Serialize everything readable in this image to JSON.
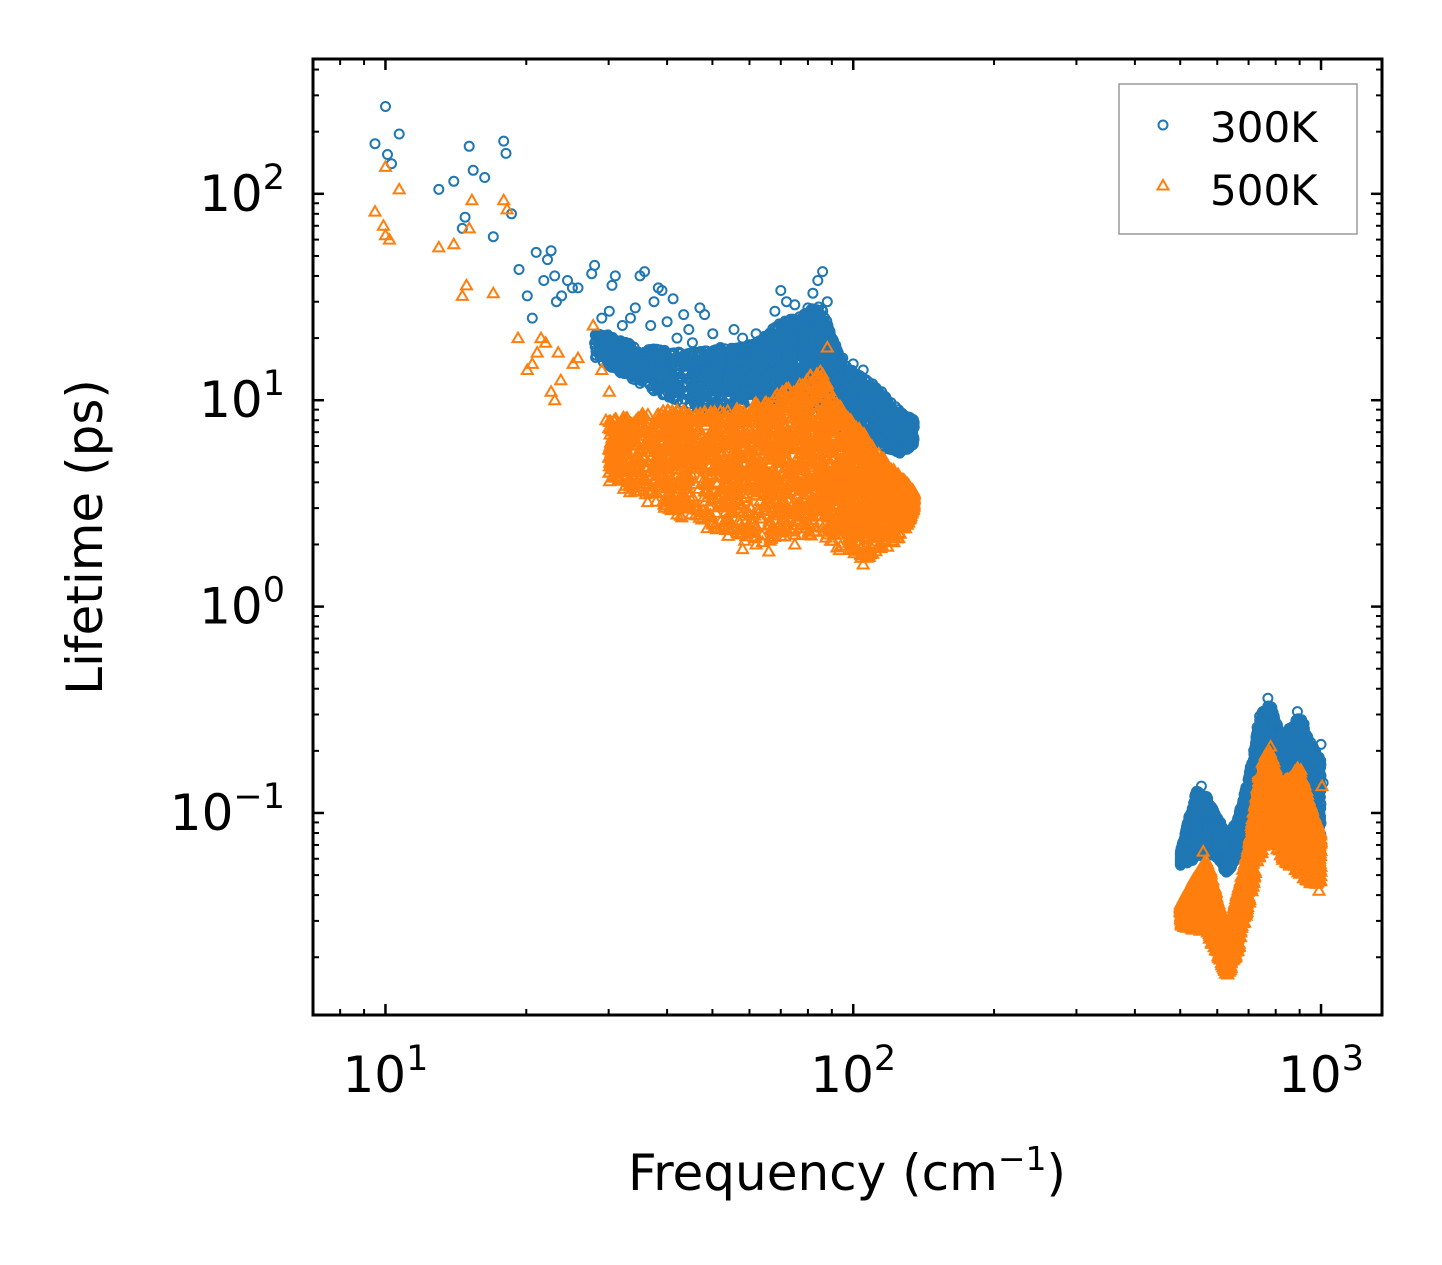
{
  "chart_data": {
    "type": "scatter",
    "title": "",
    "xlabel": "Frequency (cm",
    "xlabel_exponent": "−1",
    "xlabel_suffix": ")",
    "ylabel": "Lifetime (ps)",
    "xscale": "log",
    "yscale": "log",
    "xlim": [
      7,
      1350
    ],
    "ylim": [
      0.0105,
      450
    ],
    "x_ticks": [
      {
        "value": 10,
        "base": "10",
        "exp": "1"
      },
      {
        "value": 100,
        "base": "10",
        "exp": "2"
      },
      {
        "value": 1000,
        "base": "10",
        "exp": "3"
      }
    ],
    "y_ticks": [
      {
        "value": 0.1,
        "base": "10",
        "exp": "−1"
      },
      {
        "value": 1,
        "base": "10",
        "exp": "0"
      },
      {
        "value": 10,
        "base": "10",
        "exp": "1"
      },
      {
        "value": 100,
        "base": "10",
        "exp": "2"
      }
    ],
    "legend_position": "top-right",
    "series": [
      {
        "name": "300K",
        "marker": "circle",
        "color": "#1f77b4",
        "points": [
          [
            9.5,
            175
          ],
          [
            10.0,
            265
          ],
          [
            10.1,
            155
          ],
          [
            10.3,
            140
          ],
          [
            10.7,
            195
          ],
          [
            13.0,
            105
          ],
          [
            14.0,
            115
          ],
          [
            14.6,
            68
          ],
          [
            14.8,
            77
          ],
          [
            15.1,
            170
          ],
          [
            15.4,
            130
          ],
          [
            16.3,
            120
          ],
          [
            17.0,
            62
          ],
          [
            17.9,
            180
          ],
          [
            18.1,
            157
          ],
          [
            18.6,
            80
          ],
          [
            19.3,
            43
          ],
          [
            20.1,
            32
          ],
          [
            20.6,
            25
          ],
          [
            21.0,
            52
          ],
          [
            21.8,
            38
          ],
          [
            22.2,
            48
          ],
          [
            22.6,
            53
          ],
          [
            23.0,
            40
          ],
          [
            23.2,
            30
          ],
          [
            23.8,
            32
          ],
          [
            24.5,
            38
          ],
          [
            25.1,
            35
          ],
          [
            25.8,
            35
          ],
          [
            27.6,
            41
          ],
          [
            28.0,
            45
          ],
          [
            28.3,
            21
          ],
          [
            29.0,
            25
          ],
          [
            29.6,
            18
          ],
          [
            30.1,
            27
          ],
          [
            30.5,
            36
          ],
          [
            31.0,
            40
          ],
          [
            32.1,
            23
          ],
          [
            33.4,
            25
          ],
          [
            34.2,
            28
          ],
          [
            35.0,
            40
          ],
          [
            35.8,
            42
          ],
          [
            36.9,
            23
          ],
          [
            37.5,
            30
          ],
          [
            38.3,
            35
          ],
          [
            39.0,
            34
          ],
          [
            40.0,
            24
          ],
          [
            41.2,
            31
          ],
          [
            42.0,
            20
          ],
          [
            43.4,
            26
          ],
          [
            44.5,
            22
          ],
          [
            45.3,
            19
          ],
          [
            47.0,
            28
          ],
          [
            48.1,
            26
          ],
          [
            50.1,
            21
          ],
          [
            52.0,
            18
          ],
          [
            55.6,
            22
          ],
          [
            58.0,
            20
          ],
          [
            62.0,
            21
          ],
          [
            65.0,
            20
          ],
          [
            68.0,
            27
          ],
          [
            70.0,
            34
          ],
          [
            72.0,
            30
          ],
          [
            75.0,
            29
          ],
          [
            78.0,
            24
          ],
          [
            80.0,
            28
          ],
          [
            82.0,
            33
          ],
          [
            84.0,
            38
          ],
          [
            86.0,
            42
          ],
          [
            88.0,
            30
          ],
          [
            90.0,
            20
          ],
          [
            95.0,
            16
          ],
          [
            100.0,
            15
          ],
          [
            105.0,
            14
          ],
          [
            110.0,
            12
          ],
          [
            115.0,
            11
          ],
          [
            120.0,
            9
          ],
          [
            125.0,
            8.5
          ],
          [
            130.0,
            8
          ],
          [
            135.0,
            7.8
          ],
          [
            505,
            0.062
          ],
          [
            520,
            0.07
          ],
          [
            540,
            0.12
          ],
          [
            555,
            0.135
          ],
          [
            570,
            0.12
          ],
          [
            590,
            0.1
          ],
          [
            610,
            0.09
          ],
          [
            630,
            0.075
          ],
          [
            650,
            0.08
          ],
          [
            670,
            0.095
          ],
          [
            690,
            0.12
          ],
          [
            710,
            0.16
          ],
          [
            730,
            0.26
          ],
          [
            750,
            0.31
          ],
          [
            770,
            0.36
          ],
          [
            790,
            0.3
          ],
          [
            810,
            0.25
          ],
          [
            830,
            0.22
          ],
          [
            860,
            0.25
          ],
          [
            890,
            0.31
          ],
          [
            920,
            0.27
          ],
          [
            950,
            0.22
          ],
          [
            980,
            0.18
          ],
          [
            1000,
            0.215
          ],
          [
            1010,
            0.14
          ]
        ]
      },
      {
        "name": "500K",
        "marker": "triangle",
        "color": "#ff7f0e",
        "points": [
          [
            9.5,
            82
          ],
          [
            9.9,
            70
          ],
          [
            10.0,
            63
          ],
          [
            10.0,
            135
          ],
          [
            10.2,
            60
          ],
          [
            10.7,
            105
          ],
          [
            13.0,
            55
          ],
          [
            14.0,
            57
          ],
          [
            14.6,
            32
          ],
          [
            14.9,
            36
          ],
          [
            15.1,
            68
          ],
          [
            15.3,
            93
          ],
          [
            17.0,
            33
          ],
          [
            17.9,
            93
          ],
          [
            18.2,
            84
          ],
          [
            19.2,
            20
          ],
          [
            20.1,
            14
          ],
          [
            20.6,
            15
          ],
          [
            21.1,
            17
          ],
          [
            21.5,
            20
          ],
          [
            22.0,
            19
          ],
          [
            22.6,
            11
          ],
          [
            23.0,
            10
          ],
          [
            23.4,
            17
          ],
          [
            23.7,
            12.5
          ],
          [
            25.2,
            15
          ],
          [
            25.8,
            16
          ],
          [
            27.8,
            23
          ],
          [
            29.0,
            14
          ],
          [
            29.6,
            8
          ],
          [
            30.1,
            11
          ],
          [
            31.0,
            6.2
          ],
          [
            32.0,
            7
          ],
          [
            33.0,
            4
          ],
          [
            34.0,
            4.5
          ],
          [
            36.0,
            3.5
          ],
          [
            38.0,
            4.8
          ],
          [
            40.0,
            3.2
          ],
          [
            42.0,
            5
          ],
          [
            45.0,
            2.8
          ],
          [
            48.0,
            4.5
          ],
          [
            50.0,
            2.5
          ],
          [
            54.0,
            2.2
          ],
          [
            58.0,
            1.9
          ],
          [
            62.0,
            2.0
          ],
          [
            66.0,
            1.85
          ],
          [
            70.0,
            2.2
          ],
          [
            75.0,
            2.0
          ],
          [
            80.0,
            2.8
          ],
          [
            85.0,
            12
          ],
          [
            88.0,
            18
          ],
          [
            92.0,
            6
          ],
          [
            96.0,
            3.4
          ],
          [
            100.0,
            2.0
          ],
          [
            105.0,
            1.6
          ],
          [
            110.0,
            1.8
          ],
          [
            115.0,
            2.0
          ],
          [
            120.0,
            2.3
          ],
          [
            125.0,
            2.8
          ],
          [
            130.0,
            3.2
          ],
          [
            135.0,
            3.5
          ],
          [
            505,
            0.034
          ],
          [
            520,
            0.033
          ],
          [
            540,
            0.048
          ],
          [
            560,
            0.065
          ],
          [
            580,
            0.04
          ],
          [
            600,
            0.032
          ],
          [
            620,
            0.023
          ],
          [
            635,
            0.017
          ],
          [
            650,
            0.025
          ],
          [
            680,
            0.048
          ],
          [
            700,
            0.06
          ],
          [
            720,
            0.1
          ],
          [
            740,
            0.15
          ],
          [
            760,
            0.19
          ],
          [
            780,
            0.21
          ],
          [
            800,
            0.15
          ],
          [
            820,
            0.11
          ],
          [
            850,
            0.13
          ],
          [
            880,
            0.16
          ],
          [
            910,
            0.12
          ],
          [
            940,
            0.1
          ],
          [
            970,
            0.08
          ],
          [
            990,
            0.042
          ],
          [
            1005,
            0.135
          ]
        ]
      }
    ],
    "dense_regions": [
      {
        "series": "300K",
        "segments": [
          [
            28,
            22,
            16
          ],
          [
            35,
            18,
            12
          ],
          [
            45,
            17,
            9
          ],
          [
            55,
            18,
            9
          ],
          [
            62,
            19,
            10
          ],
          [
            70,
            24,
            10
          ],
          [
            78,
            26,
            10
          ],
          [
            85,
            30,
            9
          ],
          [
            95,
            15,
            7
          ],
          [
            110,
            12,
            6
          ],
          [
            125,
            9,
            5.5
          ],
          [
            135,
            8,
            6
          ]
        ]
      },
      {
        "series": "500K",
        "segments": [
          [
            30,
            8,
            4
          ],
          [
            38,
            9,
            3
          ],
          [
            45,
            9,
            2.6
          ],
          [
            55,
            9,
            2.1
          ],
          [
            65,
            10,
            2.0
          ],
          [
            75,
            12,
            2.1
          ],
          [
            85,
            14,
            2.2
          ],
          [
            95,
            9,
            1.8
          ],
          [
            105,
            7,
            1.7
          ],
          [
            118,
            5,
            1.8
          ],
          [
            130,
            4,
            2.4
          ],
          [
            135,
            3.6,
            3.0
          ]
        ]
      },
      {
        "series": "300K",
        "segments": [
          [
            500,
            0.065,
            0.055
          ],
          [
            540,
            0.13,
            0.06
          ],
          [
            570,
            0.12,
            0.065
          ],
          [
            600,
            0.095,
            0.06
          ],
          [
            630,
            0.08,
            0.05
          ],
          [
            660,
            0.09,
            0.06
          ],
          [
            700,
            0.15,
            0.08
          ],
          [
            740,
            0.3,
            0.11
          ],
          [
            780,
            0.34,
            0.13
          ],
          [
            820,
            0.24,
            0.1
          ],
          [
            860,
            0.26,
            0.09
          ],
          [
            900,
            0.3,
            0.09
          ],
          [
            950,
            0.22,
            0.08
          ],
          [
            1000,
            0.18,
            0.07
          ]
        ]
      },
      {
        "series": "500K",
        "segments": [
          [
            500,
            0.036,
            0.028
          ],
          [
            540,
            0.05,
            0.027
          ],
          [
            570,
            0.06,
            0.026
          ],
          [
            600,
            0.04,
            0.02
          ],
          [
            630,
            0.025,
            0.016
          ],
          [
            660,
            0.04,
            0.02
          ],
          [
            700,
            0.07,
            0.035
          ],
          [
            740,
            0.17,
            0.06
          ],
          [
            780,
            0.2,
            0.08
          ],
          [
            820,
            0.14,
            0.06
          ],
          [
            860,
            0.15,
            0.055
          ],
          [
            900,
            0.17,
            0.05
          ],
          [
            950,
            0.11,
            0.045
          ],
          [
            1000,
            0.08,
            0.045
          ]
        ]
      }
    ]
  }
}
